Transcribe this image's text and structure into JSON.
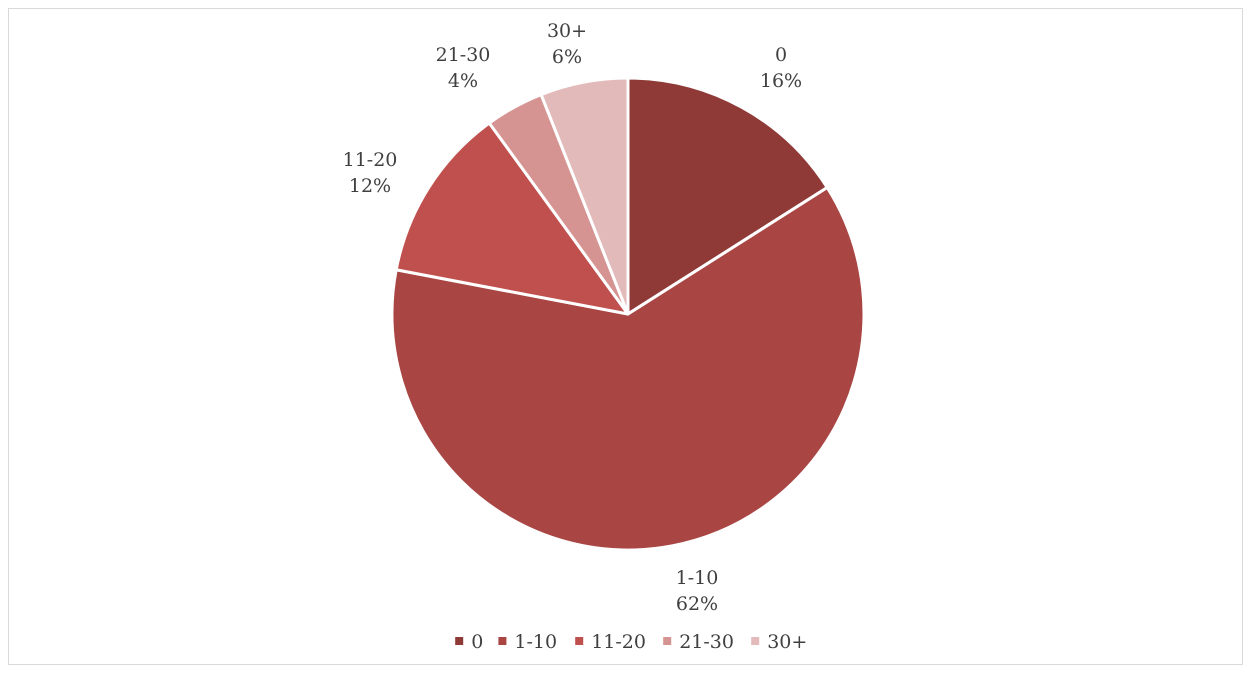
{
  "chart_data": {
    "type": "pie",
    "categories": [
      "0",
      "1-10",
      "11-20",
      "21-30",
      "30+"
    ],
    "values": [
      16,
      62,
      12,
      4,
      6
    ],
    "value_labels": [
      "16%",
      "62%",
      "12%",
      "4%",
      "6%"
    ],
    "colors": [
      "#8f3a37",
      "#a94644",
      "#c0504d",
      "#d59391",
      "#e2bab9"
    ],
    "legend_position": "bottom",
    "start_angle": "12 o'clock, clockwise"
  }
}
